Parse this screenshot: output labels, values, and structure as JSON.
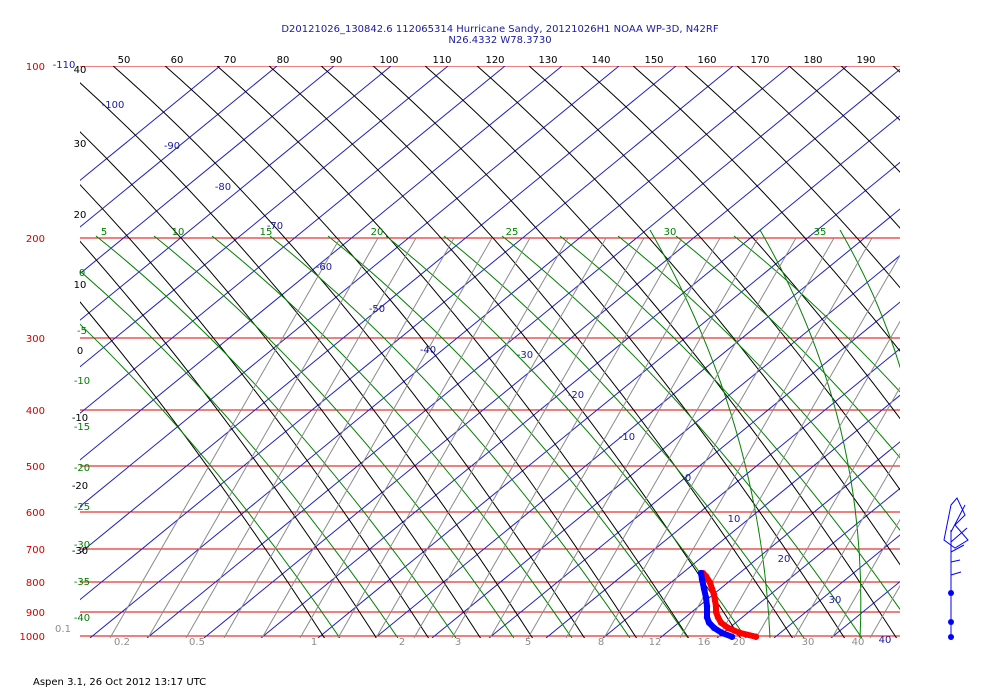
{
  "chart_data": {
    "type": "line",
    "title_line1": "D20121026_130842.6 112065314 Hurricane Sandy, 20121026H1 NOAA WP-3D, N42RF",
    "title_line2": "N26.4332 W78.3730",
    "footer": "Aspen 3.1, 26 Oct 2012  13:17 UTC",
    "pressure_levels": [
      100,
      200,
      300,
      400,
      500,
      600,
      700,
      800,
      900,
      1000
    ],
    "theta_labels": [
      "50",
      "60",
      "70",
      "80",
      "90",
      "100",
      "110",
      "120",
      "130",
      "140",
      "150",
      "160",
      "170",
      "180",
      "190"
    ],
    "isotherm_labels": [
      "-100",
      "-90",
      "-80",
      "-70",
      "-60",
      "-50",
      "-40",
      "-30",
      "-20",
      "-10",
      "0",
      "10",
      "20",
      "30",
      "40"
    ],
    "mixing_ratio_labels": [
      "0.1",
      "0.2",
      "0.5",
      "1",
      "2",
      "3",
      "5",
      "8",
      "12",
      "16",
      "20",
      "30",
      "40"
    ],
    "height_labels": [
      "-110",
      "40",
      "30",
      "20",
      "10",
      "0",
      "-10",
      "-20",
      "-30"
    ],
    "theta_e_labels": [
      "5",
      "10",
      "15",
      "20",
      "25",
      "30",
      "35"
    ],
    "moist_labels": [
      "0",
      "-5",
      "-10",
      "-15",
      "-20",
      "-25",
      "-30",
      "-35",
      "-40"
    ],
    "series": [
      {
        "name": "Temperature",
        "color": "#ff0000",
        "p": [
          770,
          780,
          800,
          820,
          840,
          860,
          880,
          900,
          920,
          940,
          960,
          980,
          995
        ],
        "x": [
          703,
          706,
          710,
          712,
          714,
          715,
          716,
          716,
          718,
          721,
          728,
          740,
          756
        ]
      },
      {
        "name": "Dewpoint",
        "color": "#0000ff",
        "p": [
          770,
          790,
          820,
          850,
          880,
          900,
          920,
          940,
          960,
          980,
          995
        ],
        "x": [
          701,
          702,
          704,
          706,
          707,
          707,
          707,
          709,
          714,
          722,
          732
        ]
      }
    ],
    "wind_profile_color": "#0000ff"
  }
}
